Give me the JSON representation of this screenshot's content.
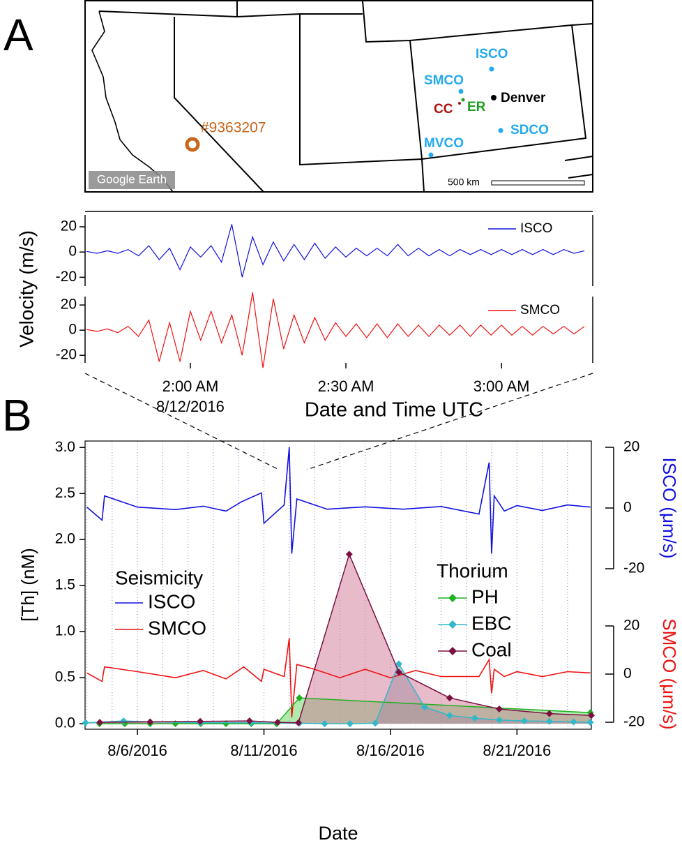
{
  "panel_labels": {
    "a": "A",
    "b": "B"
  },
  "map": {
    "stations": {
      "isco": "ISCO",
      "smco": "SMCO",
      "cc": "CC",
      "er": "ER",
      "denver": "Denver",
      "sdco": "SDCO",
      "mvco": "MVCO"
    },
    "event": "#9363207",
    "watermark": "Google Earth",
    "scale": "500 km"
  },
  "chart_data": [
    {
      "type": "line",
      "x_label": "Date and Time UTC",
      "y_label": "Velocity (m/s)",
      "xlim": [
        99.7,
        197.6
      ],
      "xticks": [
        {
          "value": 120,
          "label": "2:00 AM",
          "sublabel": "8/12/2016"
        },
        {
          "value": 150,
          "label": "2:30 AM"
        },
        {
          "value": 180,
          "label": "3:00 AM"
        }
      ],
      "x": [
        100,
        102,
        104,
        106,
        108,
        110,
        112,
        114,
        116,
        118,
        120,
        122,
        124,
        126,
        128,
        130,
        132,
        134,
        136,
        138,
        140,
        142,
        144,
        146,
        148,
        150,
        152,
        154,
        156,
        158,
        160,
        162,
        164,
        166,
        168,
        170,
        172,
        174,
        176,
        178,
        180,
        182,
        184,
        186,
        188,
        190,
        192,
        194,
        196
      ],
      "series": [
        {
          "name": "ISCO",
          "color": "#1010e0",
          "ylim": [
            -27,
            29.4
          ],
          "yticks": [
            -20,
            0,
            20
          ],
          "values": [
            0.5,
            -1,
            1,
            -1,
            2,
            -3,
            5,
            -6,
            3,
            -14,
            4,
            -4,
            5,
            -8,
            22,
            -20,
            12,
            -10,
            8,
            -7,
            6,
            -6,
            7,
            -5,
            4,
            -4,
            3,
            -3,
            3,
            -3,
            6,
            -3,
            3,
            -3,
            2,
            -3,
            2,
            -2,
            2,
            -2,
            2,
            -2,
            2,
            -2,
            2,
            -2,
            2,
            -1,
            1
          ]
        },
        {
          "name": "SMCO",
          "color": "#f01010",
          "ylim": [
            -26,
            26.7
          ],
          "yticks": [
            -20,
            0,
            20
          ],
          "values": [
            0.5,
            -1,
            1,
            -2,
            3,
            -5,
            8,
            -25,
            6,
            -25,
            15,
            -8,
            15,
            -10,
            12,
            -20,
            30,
            -30,
            25,
            -15,
            12,
            -10,
            10,
            -8,
            6,
            -5,
            5,
            -6,
            5,
            -6,
            5,
            -5,
            4,
            -5,
            4,
            -4,
            4,
            -5,
            4,
            -4,
            4,
            -4,
            3,
            -4,
            3,
            -3,
            3,
            -3,
            3
          ]
        }
      ]
    },
    {
      "type": "line",
      "x_label": "Date",
      "y_label": "[Th] (nM)",
      "xlim": [
        3.93,
        23.94
      ],
      "xticks": [
        {
          "value": 6,
          "label": "8/6/2016"
        },
        {
          "value": 11,
          "label": "8/11/2016"
        },
        {
          "value": 16,
          "label": "8/16/2016"
        },
        {
          "value": 21,
          "label": "8/21/2016"
        }
      ],
      "x_minor_ticks": [
        4,
        5,
        6,
        7,
        8,
        9,
        10,
        11,
        12,
        13,
        14,
        15,
        16,
        17,
        18,
        19,
        20,
        21,
        22,
        23
      ],
      "grid": true,
      "ylim": [
        -0.06,
        3.07
      ],
      "yticks": [
        {
          "value": 0,
          "label": "0.0"
        },
        0.5,
        {
          "value": 1,
          "label": "1.0"
        },
        1.5,
        {
          "value": 2,
          "label": "2.0"
        },
        2.5,
        {
          "value": 3,
          "label": "3.0"
        }
      ],
      "y2_label": "ISCO (μm/s)",
      "y2lim": [
        -20,
        20
      ],
      "y2ticks": [
        -20,
        0,
        20
      ],
      "y3_label": "SMCO (μm/s)",
      "y3lim": [
        -20,
        20
      ],
      "y3ticks": [
        -20,
        0,
        20
      ],
      "legend_titles": {
        "seismicity": "Seismicity",
        "thorium": "Thorium"
      },
      "series": [
        {
          "name": "ISCO",
          "color": "#1010e0",
          "axis": "y2",
          "x": [
            4.0,
            4.6,
            4.7,
            6.0,
            7.5,
            8.6,
            9.5,
            10.1,
            10.9,
            11.0,
            11.8,
            12.0,
            12.1,
            12.3,
            13.5,
            15.0,
            16.5,
            18.0,
            19.5,
            19.9,
            20.0,
            20.1,
            20.5,
            21.0,
            22.0,
            23.0,
            23.9
          ],
          "values": [
            0.3,
            -4,
            4,
            0.3,
            -0.5,
            0.6,
            -1,
            2,
            5,
            -5,
            1,
            20,
            -15,
            3,
            -0.4,
            0.4,
            -0.4,
            0.5,
            -2,
            15,
            -15,
            4,
            -1,
            0.8,
            -0.8,
            1,
            0.3
          ]
        },
        {
          "name": "SMCO",
          "color": "#f01010",
          "axis": "y3",
          "x": [
            4.0,
            4.6,
            4.7,
            6.0,
            7.5,
            8.6,
            9.5,
            10.2,
            10.9,
            11.0,
            11.8,
            12.0,
            12.1,
            12.3,
            13.0,
            14.0,
            15.0,
            16.0,
            17.0,
            18.0,
            19.5,
            19.9,
            20.0,
            20.1,
            20.5,
            21.0,
            22.0,
            23.0,
            23.9
          ],
          "values": [
            0.5,
            -3,
            3,
            1,
            -1.5,
            1.5,
            -2,
            3,
            -3,
            2,
            -1,
            15,
            -18,
            4,
            2,
            -1.5,
            2,
            -1.5,
            1.5,
            -1,
            -1,
            6,
            -8,
            2,
            -1,
            1,
            -1,
            1,
            0.5
          ]
        },
        {
          "name": "PH",
          "color": "#20b020",
          "fill": "#60d860",
          "x": [
            4.5,
            5.5,
            6.5,
            7.5,
            8.5,
            9.5,
            10.5,
            11.5,
            12.4,
            23.9
          ],
          "values": [
            0,
            0,
            0,
            0,
            0,
            0,
            0,
            0,
            0.28,
            0.12
          ]
        },
        {
          "name": "EBC",
          "color": "#30b8c8",
          "fill": "#7fa0b0",
          "x": [
            3.95,
            5.45,
            6.5,
            8.5,
            10.5,
            12.4,
            13.4,
            14.4,
            15.4,
            16.33,
            17.35,
            18.34,
            19.33,
            20.3,
            21.29,
            22.28,
            23.24,
            23.9
          ],
          "values": [
            0.01,
            0.03,
            0.02,
            0.01,
            0.01,
            0.005,
            0,
            0,
            0.005,
            0.65,
            0.18,
            0.09,
            0.06,
            0.04,
            0.03,
            0.025,
            0.02,
            0.015
          ]
        },
        {
          "name": "Coal",
          "color": "#7a1040",
          "fill": "#d07896",
          "x": [
            4.51,
            6.5,
            8.48,
            10.43,
            11.54,
            12.36,
            14.37,
            16.33,
            18.34,
            20.3,
            22.28,
            23.94
          ],
          "values": [
            0.015,
            0.02,
            0.025,
            0.03,
            0.015,
            0.01,
            1.84,
            0.56,
            0.28,
            0.16,
            0.11,
            0.09
          ]
        }
      ]
    }
  ]
}
